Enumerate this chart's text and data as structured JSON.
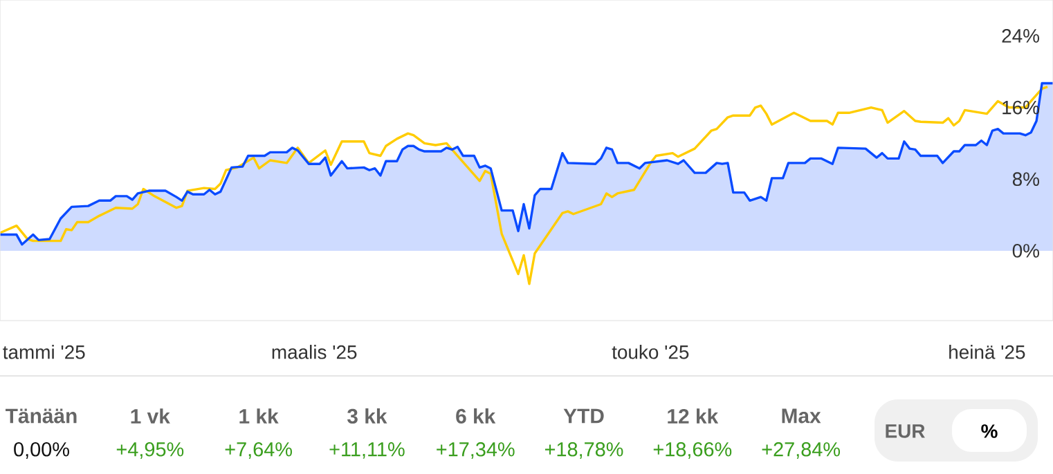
{
  "chart_data": [
    {
      "type": "line",
      "xlim": [
        "2025-01-03",
        "2025-07-13"
      ],
      "ylim": [
        -7.8,
        28
      ],
      "xticks": [
        {
          "value": "2025-01-11",
          "label": "tammi '25"
        },
        {
          "value": "2025-03-01",
          "label": "maalis '25"
        },
        {
          "value": "2025-05-01",
          "label": "touko '25"
        },
        {
          "value": "2025-07-01",
          "label": "heinä '25"
        }
      ],
      "yticks": [
        {
          "value": 0,
          "label": "0%"
        },
        {
          "value": 8,
          "label": "8%"
        },
        {
          "value": 16,
          "label": "16%"
        },
        {
          "value": 24,
          "label": "24%"
        }
      ],
      "marker": "none",
      "line_style": "solid",
      "series": [
        {
          "type": "area",
          "color": "#0a4bff",
          "x": [
            "2025-01-03",
            "2025-01-06",
            "2025-01-07",
            "2025-01-09",
            "2025-01-10",
            "2025-01-12",
            "2025-01-14",
            "2025-01-16",
            "2025-01-19",
            "2025-01-21",
            "2025-01-23",
            "2025-01-24",
            "2025-01-26",
            "2025-01-27",
            "2025-01-28",
            "2025-01-30",
            "2025-02-02",
            "2025-02-04",
            "2025-02-05",
            "2025-02-06",
            "2025-02-07",
            "2025-02-09",
            "2025-02-10",
            "2025-02-11",
            "2025-02-12",
            "2025-02-14",
            "2025-02-16",
            "2025-02-17",
            "2025-02-20",
            "2025-02-21",
            "2025-02-24",
            "2025-02-25",
            "2025-02-26",
            "2025-02-28",
            "2025-03-02",
            "2025-03-03",
            "2025-03-04",
            "2025-03-06",
            "2025-03-07",
            "2025-03-10",
            "2025-03-11",
            "2025-03-12",
            "2025-03-13",
            "2025-03-14",
            "2025-03-16",
            "2025-03-17",
            "2025-03-18",
            "2025-03-19",
            "2025-03-20",
            "2025-03-21",
            "2025-03-24",
            "2025-03-25",
            "2025-03-26",
            "2025-03-27",
            "2025-03-28",
            "2025-03-30",
            "2025-03-31",
            "2025-04-01",
            "2025-04-02",
            "2025-04-04",
            "2025-04-06",
            "2025-04-07",
            "2025-04-08",
            "2025-04-09",
            "2025-04-10",
            "2025-04-11",
            "2025-04-13",
            "2025-04-15",
            "2025-04-16",
            "2025-04-21",
            "2025-04-22",
            "2025-04-23",
            "2025-04-24",
            "2025-04-25",
            "2025-04-27",
            "2025-04-29",
            "2025-04-30",
            "2025-05-04",
            "2025-05-06",
            "2025-05-07",
            "2025-05-09",
            "2025-05-11",
            "2025-05-13",
            "2025-05-14",
            "2025-05-15",
            "2025-05-16",
            "2025-05-18",
            "2025-05-19",
            "2025-05-21",
            "2025-05-22",
            "2025-05-23",
            "2025-05-25",
            "2025-05-26",
            "2025-05-29",
            "2025-05-30",
            "2025-06-01",
            "2025-06-03",
            "2025-06-04",
            "2025-06-09",
            "2025-06-10",
            "2025-06-11",
            "2025-06-12",
            "2025-06-13",
            "2025-06-15",
            "2025-06-16",
            "2025-06-17",
            "2025-06-18",
            "2025-06-19",
            "2025-06-22",
            "2025-06-23",
            "2025-06-25",
            "2025-06-26",
            "2025-06-27",
            "2025-06-29",
            "2025-06-30",
            "2025-07-01",
            "2025-07-02",
            "2025-07-03",
            "2025-07-04",
            "2025-07-07",
            "2025-07-08",
            "2025-07-09",
            "2025-07-10",
            "2025-07-11",
            "2025-07-13"
          ],
          "values": [
            1.8,
            1.8,
            0.7,
            1.8,
            1.2,
            1.3,
            3.6,
            4.9,
            5.0,
            5.6,
            5.6,
            6.1,
            6.1,
            5.7,
            6.4,
            6.7,
            6.7,
            6.0,
            5.6,
            6.6,
            6.3,
            6.3,
            6.8,
            6.3,
            6.6,
            9.3,
            9.4,
            10.6,
            10.6,
            11.0,
            11.0,
            11.5,
            11.2,
            9.7,
            9.7,
            10.4,
            8.4,
            10.0,
            9.2,
            9.3,
            9.0,
            9.2,
            8.4,
            10.0,
            10.0,
            11.3,
            11.7,
            11.7,
            11.3,
            11.1,
            11.1,
            11.5,
            11.3,
            11.6,
            10.6,
            10.6,
            9.3,
            9.5,
            9.2,
            4.5,
            4.5,
            2.2,
            5.2,
            2.5,
            6.2,
            6.9,
            6.9,
            10.9,
            9.8,
            9.7,
            10.3,
            11.5,
            11.3,
            9.8,
            9.8,
            9.2,
            9.8,
            10.1,
            9.7,
            10.1,
            8.7,
            8.7,
            9.8,
            9.7,
            9.8,
            6.5,
            6.5,
            5.6,
            6.0,
            5.6,
            8.1,
            8.1,
            9.8,
            9.8,
            10.3,
            10.3,
            9.7,
            11.5,
            11.4,
            10.9,
            10.4,
            10.9,
            10.3,
            10.3,
            12.2,
            11.4,
            11.3,
            10.6,
            10.6,
            9.8,
            11.1,
            11.1,
            11.8,
            11.8,
            12.3,
            11.8,
            13.4,
            13.6,
            13.1,
            13.1,
            12.9,
            13.2,
            14.5,
            18.7,
            18.7
          ]
        },
        {
          "type": "line",
          "color": "#ffcc00",
          "x": [
            "2025-01-03",
            "2025-01-06",
            "2025-01-08",
            "2025-01-09",
            "2025-01-14",
            "2025-01-15",
            "2025-01-16",
            "2025-01-17",
            "2025-01-19",
            "2025-01-21",
            "2025-01-22",
            "2025-01-24",
            "2025-01-27",
            "2025-01-28",
            "2025-01-29",
            "2025-01-31",
            "2025-02-04",
            "2025-02-05",
            "2025-02-06",
            "2025-02-09",
            "2025-02-11",
            "2025-02-12",
            "2025-02-13",
            "2025-02-15",
            "2025-02-18",
            "2025-02-19",
            "2025-02-21",
            "2025-02-24",
            "2025-02-26",
            "2025-02-28",
            "2025-03-03",
            "2025-03-04",
            "2025-03-06",
            "2025-03-10",
            "2025-03-11",
            "2025-03-13",
            "2025-03-14",
            "2025-03-16",
            "2025-03-18",
            "2025-03-19",
            "2025-03-21",
            "2025-03-23",
            "2025-03-25",
            "2025-03-27",
            "2025-03-31",
            "2025-04-01",
            "2025-04-02",
            "2025-04-04",
            "2025-04-07",
            "2025-04-08",
            "2025-04-09",
            "2025-04-10",
            "2025-04-15",
            "2025-04-16",
            "2025-04-17",
            "2025-04-22",
            "2025-04-23",
            "2025-04-24",
            "2025-04-25",
            "2025-04-28",
            "2025-05-01",
            "2025-05-02",
            "2025-05-05",
            "2025-05-06",
            "2025-05-09",
            "2025-05-12",
            "2025-05-13",
            "2025-05-15",
            "2025-05-16",
            "2025-05-19",
            "2025-05-20",
            "2025-05-21",
            "2025-05-22",
            "2025-05-23",
            "2025-05-27",
            "2025-05-29",
            "2025-05-30",
            "2025-06-02",
            "2025-06-03",
            "2025-06-04",
            "2025-06-06",
            "2025-06-10",
            "2025-06-12",
            "2025-06-13",
            "2025-06-16",
            "2025-06-18",
            "2025-06-19",
            "2025-06-23",
            "2025-06-24",
            "2025-06-25",
            "2025-06-26",
            "2025-06-27",
            "2025-07-01",
            "2025-07-03",
            "2025-07-05",
            "2025-07-08",
            "2025-07-09",
            "2025-07-11",
            "2025-07-12"
          ],
          "values": [
            2.0,
            2.8,
            1.3,
            1.1,
            1.1,
            2.4,
            2.3,
            3.2,
            3.2,
            3.9,
            4.2,
            4.8,
            4.7,
            5.2,
            6.9,
            6.1,
            4.8,
            5.0,
            6.7,
            7.0,
            6.9,
            7.5,
            9.0,
            9.3,
            10.4,
            9.2,
            10.1,
            9.8,
            11.5,
            9.8,
            11.2,
            9.6,
            12.2,
            12.2,
            10.9,
            10.6,
            11.7,
            12.5,
            13.1,
            12.9,
            12.0,
            11.8,
            12.0,
            10.6,
            7.8,
            8.9,
            8.6,
            1.9,
            -2.6,
            -0.5,
            -3.7,
            -0.3,
            4.2,
            4.4,
            4.1,
            5.2,
            6.4,
            6.0,
            6.4,
            6.8,
            9.8,
            10.6,
            10.9,
            10.5,
            11.4,
            13.4,
            13.6,
            14.9,
            15.1,
            15.1,
            16.0,
            16.2,
            15.3,
            14.1,
            15.4,
            14.8,
            14.5,
            14.5,
            14.1,
            15.4,
            15.4,
            16.0,
            15.7,
            14.3,
            15.6,
            14.5,
            14.4,
            14.3,
            14.8,
            14.0,
            14.5,
            15.7,
            15.3,
            16.7,
            16.0,
            16.0,
            16.7,
            18.1,
            18.3
          ]
        }
      ]
    },
    {
      "type": "other",
      "categories": [
        "Tänään",
        "1 vk",
        "1 kk",
        "3 kk",
        "6 kk",
        "YTD",
        "12 kk",
        "Max"
      ],
      "value_labels": [
        "0,00%",
        "+4,95%",
        "+7,64%",
        "+11,11%",
        "+17,34%",
        "+18,78%",
        "+18,66%",
        "+27,84%"
      ],
      "colors": [
        "#111111",
        "#3a9e1e",
        "#3a9e1e",
        "#3a9e1e",
        "#3a9e1e",
        "#3a9e1e",
        "#3a9e1e",
        "#3a9e1e"
      ],
      "annotations": [
        "EUR",
        "%"
      ]
    }
  ]
}
